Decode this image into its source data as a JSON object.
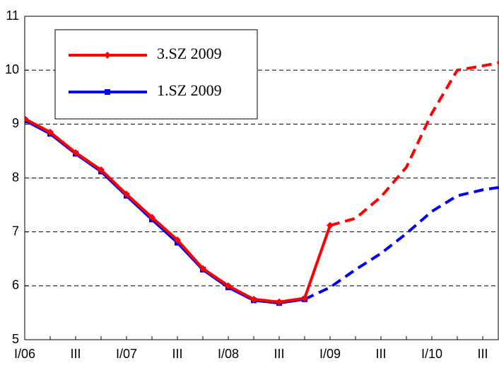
{
  "chart_data": {
    "type": "line",
    "categories": [
      "I/06",
      null,
      "III",
      null,
      "I/07",
      null,
      "III",
      null,
      "I/08",
      null,
      "III",
      null,
      "I/09",
      null,
      "III",
      null,
      "I/10",
      null,
      "III",
      null
    ],
    "series": [
      {
        "name": "3.SZ 2009",
        "color": "#ff0000",
        "marker": "diamond",
        "dash_from": 12,
        "values": [
          9.1,
          8.85,
          8.47,
          8.15,
          7.7,
          7.27,
          6.85,
          6.32,
          6.0,
          5.75,
          5.7,
          5.77,
          7.12,
          7.25,
          7.65,
          8.2,
          9.2,
          10.0,
          10.08,
          10.17
        ]
      },
      {
        "name": "1.SZ 2009",
        "color": "#0000ff",
        "marker": "square",
        "dash_from": 11,
        "values": [
          9.07,
          8.82,
          8.45,
          8.12,
          7.67,
          7.23,
          6.8,
          6.3,
          5.97,
          5.73,
          5.68,
          5.75,
          5.97,
          6.3,
          6.6,
          6.97,
          7.38,
          7.67,
          7.78,
          7.85
        ]
      }
    ],
    "ylim": [
      5,
      11
    ],
    "yticks": [
      5,
      6,
      7,
      8,
      9,
      10,
      11
    ],
    "grid": true
  }
}
